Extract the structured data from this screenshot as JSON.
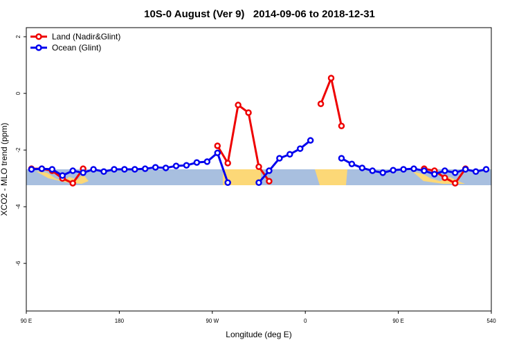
{
  "chart_data": {
    "type": "line",
    "title": "10S-0 August (Ver 9)   2014-09-06 to 2018-12-31",
    "x_label": "Longitude (deg E)",
    "y_label": "XCO2 - MLO trend (ppm)",
    "x": [
      95,
      105,
      115,
      125,
      135,
      145,
      155,
      165,
      175,
      185,
      195,
      205,
      215,
      225,
      235,
      245,
      255,
      265,
      275,
      285,
      295,
      305,
      315,
      325,
      335,
      345,
      355,
      365,
      375,
      385,
      395,
      405,
      415,
      425,
      435,
      445,
      455,
      465,
      475,
      485,
      495,
      505,
      515,
      525,
      535
    ],
    "series": [
      {
        "name": "Land (Nadir&Glint)",
        "color": "#ee0000",
        "values": [
          -2.66,
          -2.66,
          -2.73,
          -3.0,
          -3.17,
          -2.66,
          null,
          null,
          null,
          null,
          null,
          null,
          null,
          null,
          null,
          null,
          null,
          null,
          -1.85,
          -2.46,
          -0.41,
          -0.68,
          -2.59,
          -3.1,
          null,
          null,
          null,
          null,
          -0.37,
          0.54,
          -1.15,
          null,
          null,
          null,
          null,
          null,
          null,
          null,
          -2.66,
          -2.73,
          -2.98,
          -3.17,
          -2.66,
          null,
          null
        ]
      },
      {
        "name": "Ocean (Glint)",
        "color": "#0000ee",
        "values": [
          -2.68,
          -2.66,
          -2.68,
          -2.9,
          -2.73,
          -2.8,
          -2.68,
          -2.76,
          -2.68,
          -2.68,
          -2.68,
          -2.66,
          -2.61,
          -2.63,
          -2.56,
          -2.54,
          -2.44,
          -2.41,
          -2.1,
          -3.15,
          null,
          null,
          -3.15,
          -2.73,
          -2.29,
          -2.15,
          -1.95,
          -1.66,
          null,
          null,
          -2.29,
          -2.49,
          -2.63,
          -2.73,
          -2.8,
          -2.71,
          -2.68,
          -2.66,
          -2.73,
          -2.85,
          -2.73,
          -2.8,
          -2.68,
          -2.76,
          -2.68
        ]
      }
    ],
    "xlim": [
      90,
      540
    ],
    "xticks": [
      {
        "value": 90,
        "label": "90 E"
      },
      180,
      {
        "value": 270,
        "label": "90 W"
      },
      {
        "value": 360,
        "label": "0"
      },
      {
        "value": 450,
        "label": "90 E"
      },
      540
    ],
    "ylim": [
      -7.68,
      2.32
    ],
    "yticks": [
      -6,
      -4,
      -2,
      0,
      2
    ],
    "legend": "top-left"
  }
}
